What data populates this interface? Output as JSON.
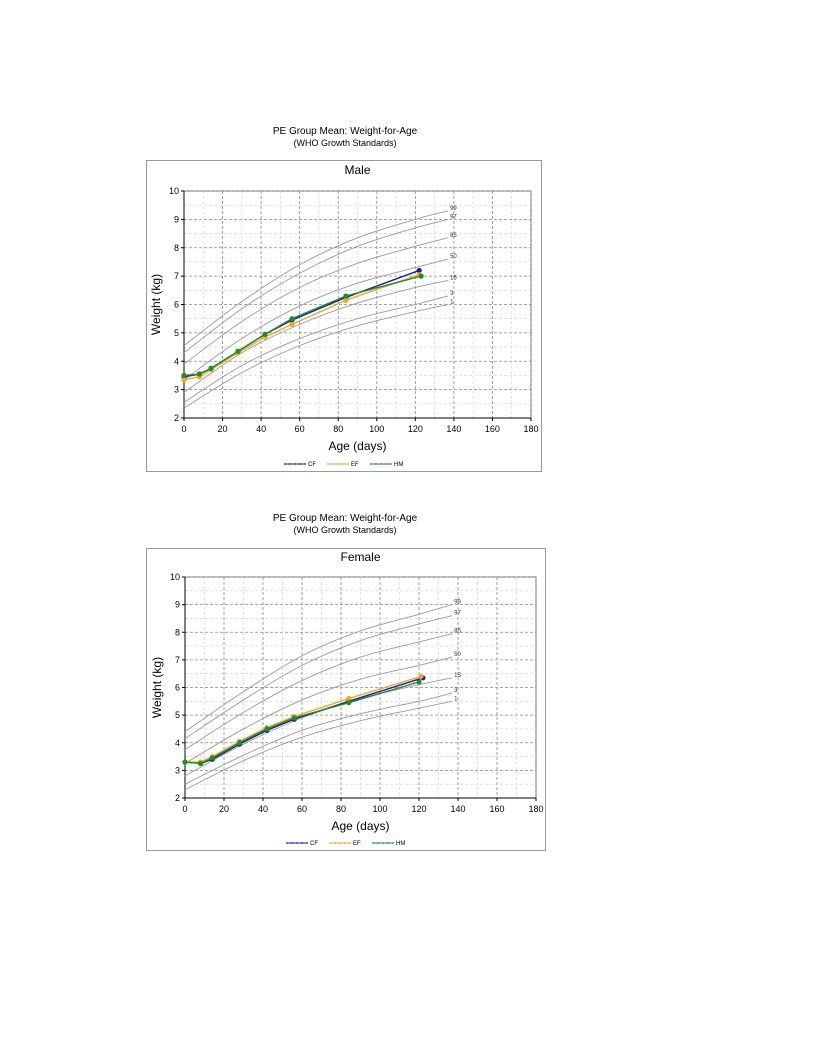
{
  "chart_data": [
    {
      "type": "line",
      "title": "PE Group Mean: Weight-for-Age",
      "subtitle": "(WHO Growth Standards)",
      "panel_title": "Male",
      "xlabel": "Age (days)",
      "ylabel": "Weight (kg)",
      "xlim": [
        0,
        180
      ],
      "ylim": [
        2,
        10
      ],
      "xticks": [
        0,
        20,
        40,
        60,
        80,
        100,
        120,
        140,
        160,
        180
      ],
      "yticks": [
        2,
        3,
        4,
        5,
        6,
        7,
        8,
        9,
        10
      ],
      "grid": true,
      "legend_position": "bottom",
      "series": [
        {
          "name": "CF",
          "color": "#1a1ab4",
          "x": [
            0,
            8,
            14,
            28,
            42,
            56,
            84,
            122
          ],
          "y": [
            3.45,
            3.55,
            3.75,
            4.35,
            4.95,
            5.45,
            6.25,
            7.2
          ]
        },
        {
          "name": "EF",
          "color": "#f5a623",
          "x": [
            0,
            8,
            14,
            28,
            42,
            56,
            84,
            122
          ],
          "y": [
            3.35,
            3.45,
            3.7,
            4.3,
            4.85,
            5.3,
            6.15,
            7.05
          ]
        },
        {
          "name": "HM",
          "color": "#1f8f1f",
          "x": [
            0,
            8,
            14,
            28,
            42,
            56,
            84,
            123
          ],
          "y": [
            3.5,
            3.55,
            3.75,
            4.35,
            4.95,
            5.5,
            6.3,
            7.0
          ]
        }
      ],
      "reference_curves": [
        {
          "label": "99",
          "x": [
            0,
            30,
            60,
            90,
            120,
            137
          ],
          "y": [
            4.55,
            6.1,
            7.4,
            8.35,
            9.0,
            9.3
          ]
        },
        {
          "label": "97",
          "x": [
            0,
            30,
            60,
            90,
            120,
            137
          ],
          "y": [
            4.3,
            5.85,
            7.1,
            8.05,
            8.7,
            9.0
          ]
        },
        {
          "label": "85",
          "x": [
            0,
            30,
            60,
            90,
            120,
            137
          ],
          "y": [
            3.9,
            5.4,
            6.6,
            7.45,
            8.05,
            8.35
          ]
        },
        {
          "label": "50",
          "x": [
            0,
            30,
            60,
            90,
            120,
            137
          ],
          "y": [
            3.35,
            4.8,
            5.95,
            6.75,
            7.3,
            7.6
          ]
        },
        {
          "label": "15",
          "x": [
            0,
            30,
            60,
            90,
            120,
            137
          ],
          "y": [
            2.9,
            4.3,
            5.3,
            6.05,
            6.6,
            6.85
          ]
        },
        {
          "label": "3",
          "x": [
            0,
            30,
            60,
            90,
            120,
            137
          ],
          "y": [
            2.55,
            3.85,
            4.8,
            5.5,
            6.0,
            6.3
          ]
        },
        {
          "label": "1",
          "x": [
            0,
            30,
            60,
            90,
            120,
            137
          ],
          "y": [
            2.35,
            3.6,
            4.55,
            5.25,
            5.75,
            6.0
          ]
        }
      ]
    },
    {
      "type": "line",
      "title": "PE Group Mean: Weight-for-Age",
      "subtitle": "(WHO Growth Standards)",
      "panel_title": "Female",
      "xlabel": "Age (days)",
      "ylabel": "Weight (kg)",
      "xlim": [
        0,
        180
      ],
      "ylim": [
        2,
        10
      ],
      "xticks": [
        0,
        20,
        40,
        60,
        80,
        100,
        120,
        140,
        160,
        180
      ],
      "yticks": [
        2,
        3,
        4,
        5,
        6,
        7,
        8,
        9,
        10
      ],
      "grid": true,
      "legend_position": "bottom",
      "series": [
        {
          "name": "CF",
          "color": "#1a1ab4",
          "x": [
            0,
            8,
            14,
            28,
            42,
            56,
            84,
            122
          ],
          "y": [
            3.3,
            3.25,
            3.4,
            3.95,
            4.45,
            4.85,
            5.5,
            6.35
          ]
        },
        {
          "name": "EF",
          "color": "#f5a623",
          "x": [
            0,
            8,
            14,
            28,
            42,
            56,
            84,
            121
          ],
          "y": [
            3.3,
            3.3,
            3.5,
            4.05,
            4.55,
            4.95,
            5.6,
            6.4
          ]
        },
        {
          "name": "HM",
          "color": "#1f8f1f",
          "x": [
            0,
            8,
            14,
            28,
            42,
            56,
            84,
            120
          ],
          "y": [
            3.3,
            3.25,
            3.45,
            4.0,
            4.5,
            4.9,
            5.45,
            6.2
          ]
        }
      ],
      "reference_curves": [
        {
          "label": "99",
          "x": [
            0,
            30,
            60,
            90,
            120,
            137
          ],
          "y": [
            4.4,
            5.85,
            7.15,
            8.05,
            8.65,
            9.0
          ]
        },
        {
          "label": "97",
          "x": [
            0,
            30,
            60,
            90,
            120,
            137
          ],
          "y": [
            4.15,
            5.55,
            6.8,
            7.7,
            8.3,
            8.6
          ]
        },
        {
          "label": "85",
          "x": [
            0,
            30,
            60,
            90,
            120,
            137
          ],
          "y": [
            3.75,
            5.1,
            6.25,
            7.1,
            7.65,
            7.95
          ]
        },
        {
          "label": "50",
          "x": [
            0,
            30,
            60,
            90,
            120,
            137
          ],
          "y": [
            3.25,
            4.5,
            5.55,
            6.3,
            6.8,
            7.1
          ]
        },
        {
          "label": "15",
          "x": [
            0,
            30,
            60,
            90,
            120,
            137
          ],
          "y": [
            2.8,
            3.95,
            4.9,
            5.6,
            6.1,
            6.35
          ]
        },
        {
          "label": "3",
          "x": [
            0,
            30,
            60,
            90,
            120,
            137
          ],
          "y": [
            2.5,
            3.55,
            4.45,
            5.05,
            5.5,
            5.8
          ]
        },
        {
          "label": "1",
          "x": [
            0,
            30,
            60,
            90,
            120,
            137
          ],
          "y": [
            2.3,
            3.35,
            4.2,
            4.8,
            5.25,
            5.5
          ]
        }
      ]
    }
  ]
}
